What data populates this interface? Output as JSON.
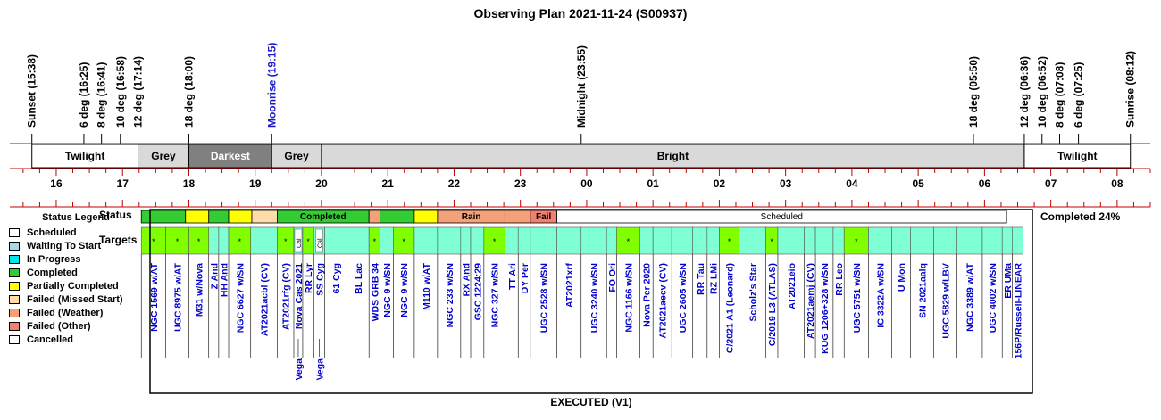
{
  "title": "Observing Plan 2021-11-24 (S00937)",
  "footer": "EXECUTED (V1)",
  "completed_label": "Completed 24%",
  "row_labels": {
    "status": "Status",
    "targets": "Targets"
  },
  "time_start_hour": 15.3,
  "time_end_hour": 32.5,
  "events": [
    {
      "label": "Sunset (15:38)",
      "t": 15.633,
      "color": "#000000"
    },
    {
      "label": "6 deg (16:25)",
      "t": 16.417,
      "color": "#000000"
    },
    {
      "label": "8 deg (16:41)",
      "t": 16.683,
      "color": "#000000"
    },
    {
      "label": "10 deg (16:58)",
      "t": 16.967,
      "color": "#000000"
    },
    {
      "label": "12 deg (17:14)",
      "t": 17.233,
      "color": "#000000"
    },
    {
      "label": "18 deg (18:00)",
      "t": 18.0,
      "color": "#000000"
    },
    {
      "label": "Moonrise (19:15)",
      "t": 19.25,
      "color": "#1a1ac8"
    },
    {
      "label": "Midnight (23:55)",
      "t": 23.917,
      "color": "#000000"
    },
    {
      "label": "18 deg (05:50)",
      "t": 29.833,
      "color": "#000000"
    },
    {
      "label": "12 deg (06:36)",
      "t": 30.6,
      "color": "#000000"
    },
    {
      "label": "10 deg (06:52)",
      "t": 30.867,
      "color": "#000000"
    },
    {
      "label": "8 deg (07:08)",
      "t": 31.133,
      "color": "#000000"
    },
    {
      "label": "6 deg (07:25)",
      "t": 31.417,
      "color": "#000000"
    },
    {
      "label": "Sunrise (08:12)",
      "t": 32.2,
      "color": "#000000"
    }
  ],
  "sky_bands": [
    {
      "label": "Twilight",
      "t0": 15.633,
      "t1": 17.233,
      "fill": "#ffffff",
      "text": "#000000"
    },
    {
      "label": "Grey",
      "t0": 17.233,
      "t1": 18.0,
      "fill": "#d9d9d9",
      "text": "#000000"
    },
    {
      "label": "Darkest",
      "t0": 18.0,
      "t1": 19.25,
      "fill": "#808080",
      "text": "#ffffff"
    },
    {
      "label": "Grey",
      "t0": 19.25,
      "t1": 20.0,
      "fill": "#d9d9d9",
      "text": "#000000"
    },
    {
      "label": "Bright",
      "t0": 20.0,
      "t1": 30.6,
      "fill": "#d9d9d9",
      "text": "#000000"
    },
    {
      "label": "Twilight",
      "t0": 30.6,
      "t1": 32.2,
      "fill": "#ffffff",
      "text": "#000000"
    }
  ],
  "hour_labels": [
    "16",
    "17",
    "18",
    "19",
    "20",
    "21",
    "22",
    "23",
    "00",
    "01",
    "02",
    "03",
    "04",
    "05",
    "06",
    "07",
    "08"
  ],
  "legend": {
    "title": "Status Legend",
    "items": [
      {
        "label": "Scheduled",
        "color": "#ffffff"
      },
      {
        "label": "Waiting To Start",
        "color": "#a8d8e8"
      },
      {
        "label": "In Progress",
        "color": "#00e5e5"
      },
      {
        "label": "Completed",
        "color": "#33cc33"
      },
      {
        "label": "Partially Completed",
        "color": "#ffff00"
      },
      {
        "label": "Failed (Missed Start)",
        "color": "#ffdcaa"
      },
      {
        "label": "Failed (Weather)",
        "color": "#f4a078"
      },
      {
        "label": "Failed (Other)",
        "color": "#f08070"
      },
      {
        "label": "Cancelled",
        "color": "#ffffff"
      }
    ]
  },
  "status_segments": [
    {
      "t0": 17.283,
      "t1": 17.95,
      "color": "#33cc33",
      "label": ""
    },
    {
      "t0": 17.95,
      "t1": 18.3,
      "color": "#ffff00",
      "label": ""
    },
    {
      "t0": 18.3,
      "t1": 18.6,
      "color": "#33cc33",
      "label": ""
    },
    {
      "t0": 18.6,
      "t1": 18.95,
      "color": "#ffff00",
      "label": ""
    },
    {
      "t0": 18.95,
      "t1": 19.333,
      "color": "#ffdcaa",
      "label": ""
    },
    {
      "t0": 19.333,
      "t1": 20.717,
      "color": "#33cc33",
      "label": "Completed"
    },
    {
      "t0": 20.717,
      "t1": 20.883,
      "color": "#f4a078",
      "label": ""
    },
    {
      "t0": 20.883,
      "t1": 21.4,
      "color": "#33cc33",
      "label": ""
    },
    {
      "t0": 21.4,
      "t1": 21.75,
      "color": "#ffff00",
      "label": ""
    },
    {
      "t0": 21.75,
      "t1": 22.767,
      "color": "#f4a078",
      "label": "Rain"
    },
    {
      "t0": 22.767,
      "t1": 23.15,
      "color": "#f4a078",
      "label": ""
    },
    {
      "t0": 23.15,
      "t1": 23.55,
      "color": "#f08070",
      "label": "Fail"
    },
    {
      "t0": 23.55,
      "t1": 30.333,
      "color": "#ffffff",
      "label": "Scheduled"
    }
  ],
  "targets": [
    {
      "t0": 17.283,
      "t1": 17.65,
      "color": "#7fff00",
      "name": "NGC 1569 w/AT",
      "star": true
    },
    {
      "t0": 17.65,
      "t1": 18.0,
      "color": "#7fff00",
      "name": "UGC 8975 w/AT",
      "star": true
    },
    {
      "t0": 18.0,
      "t1": 18.3,
      "color": "#7fff00",
      "name": "M31 w/Nova",
      "star": true
    },
    {
      "t0": 18.3,
      "t1": 18.45,
      "color": "#7fffd4",
      "name": "Z And",
      "star": false
    },
    {
      "t0": 18.45,
      "t1": 18.6,
      "color": "#7fffd4",
      "name": "HH And",
      "star": false
    },
    {
      "t0": 18.6,
      "t1": 18.933,
      "color": "#7fff00",
      "name": "NGC 6627 w/SN",
      "star": true
    },
    {
      "t0": 18.933,
      "t1": 19.333,
      "color": "#7fffd4",
      "name": "AT2021acbl (CV)",
      "star": false
    },
    {
      "t0": 19.333,
      "t1": 19.583,
      "color": "#7fff00",
      "name": "AT2021rfg (CV)",
      "star": true
    },
    {
      "t0": 19.583,
      "t1": 19.717,
      "color": "#7fffd4",
      "name": "Nova Cas 2021",
      "star": false,
      "cal": true,
      "extra": "Vega"
    },
    {
      "t0": 19.717,
      "t1": 19.883,
      "color": "#7fff00",
      "name": "RR Lyr",
      "star": true
    },
    {
      "t0": 19.883,
      "t1": 20.05,
      "color": "#7fffd4",
      "name": "SS Cyg",
      "star": false,
      "cal": true,
      "extra": "Vega"
    },
    {
      "t0": 20.05,
      "t1": 20.383,
      "color": "#7fffd4",
      "name": "61 Cyg",
      "star": false
    },
    {
      "t0": 20.383,
      "t1": 20.717,
      "color": "#7fffd4",
      "name": "BL Lac",
      "star": false
    },
    {
      "t0": 20.717,
      "t1": 20.883,
      "color": "#7fff00",
      "name": "WDS GRB 34",
      "star": true
    },
    {
      "t0": 20.883,
      "t1": 21.083,
      "color": "#7fffd4",
      "name": "NGC 9 w/SN",
      "star": false
    },
    {
      "t0": 21.083,
      "t1": 21.4,
      "color": "#7fff00",
      "name": "NGC 9 w/SN",
      "star": true
    },
    {
      "t0": 21.4,
      "t1": 21.75,
      "color": "#7fffd4",
      "name": "M110 w/AT",
      "star": false
    },
    {
      "t0": 21.75,
      "t1": 22.1,
      "color": "#7fffd4",
      "name": "NGC 233 w/SN",
      "star": false
    },
    {
      "t0": 22.1,
      "t1": 22.25,
      "color": "#7fffd4",
      "name": "RX And",
      "star": false
    },
    {
      "t0": 22.25,
      "t1": 22.45,
      "color": "#7fffd4",
      "name": "GSC 1224:29",
      "star": false
    },
    {
      "t0": 22.45,
      "t1": 22.767,
      "color": "#7fff00",
      "name": "NGC 327 w/SN",
      "star": true
    },
    {
      "t0": 22.767,
      "t1": 22.967,
      "color": "#7fffd4",
      "name": "TT Ari",
      "star": false
    },
    {
      "t0": 22.967,
      "t1": 23.15,
      "color": "#7fffd4",
      "name": "DY Per",
      "star": false
    },
    {
      "t0": 23.15,
      "t1": 23.55,
      "color": "#7fffd4",
      "name": "UGC 2528 w/SN",
      "star": false
    },
    {
      "t0": 23.55,
      "t1": 23.917,
      "color": "#7fffd4",
      "name": "AT2021xrf",
      "star": false
    },
    {
      "t0": 23.917,
      "t1": 24.3,
      "color": "#7fffd4",
      "name": "UGC 3240 w/SN",
      "star": false
    },
    {
      "t0": 24.3,
      "t1": 24.45,
      "color": "#7fffd4",
      "name": "FO Ori",
      "star": false
    },
    {
      "t0": 24.45,
      "t1": 24.8,
      "color": "#7fff00",
      "name": "NGC 1166 w/SN",
      "star": true
    },
    {
      "t0": 24.8,
      "t1": 25.0,
      "color": "#7fffd4",
      "name": "Nova Per 2020",
      "star": false
    },
    {
      "t0": 25.0,
      "t1": 25.283,
      "color": "#7fffd4",
      "name": "AT2021aecv (CV)",
      "star": false
    },
    {
      "t0": 25.283,
      "t1": 25.6,
      "color": "#7fffd4",
      "name": "UGC 2605 w/SN",
      "star": false
    },
    {
      "t0": 25.6,
      "t1": 25.817,
      "color": "#7fffd4",
      "name": "RR Tau",
      "star": false
    },
    {
      "t0": 25.817,
      "t1": 26.0,
      "color": "#7fffd4",
      "name": "RZ LMi",
      "star": false
    },
    {
      "t0": 26.0,
      "t1": 26.3,
      "color": "#7fff00",
      "name": "C/2021 A1 (Leonard)",
      "star": true
    },
    {
      "t0": 26.3,
      "t1": 26.7,
      "color": "#7fffd4",
      "name": "Scholz's Star",
      "star": false
    },
    {
      "t0": 26.7,
      "t1": 26.883,
      "color": "#7fff00",
      "name": "C/2019 L3 (ATLAS)",
      "star": true
    },
    {
      "t0": 26.883,
      "t1": 27.283,
      "color": "#7fffd4",
      "name": "AT2021eio",
      "star": false
    },
    {
      "t0": 27.283,
      "t1": 27.45,
      "color": "#7fffd4",
      "name": "AT2021aemj (CV)",
      "star": false
    },
    {
      "t0": 27.45,
      "t1": 27.717,
      "color": "#7fffd4",
      "name": "KUG 1206+328 w/SN",
      "star": false
    },
    {
      "t0": 27.717,
      "t1": 27.883,
      "color": "#7fffd4",
      "name": "RR Leo",
      "star": false
    },
    {
      "t0": 27.883,
      "t1": 28.25,
      "color": "#7fff00",
      "name": "UGC 5751 w/SN",
      "star": true
    },
    {
      "t0": 28.25,
      "t1": 28.6,
      "color": "#7fffd4",
      "name": "IC 3322A w/SN",
      "star": false
    },
    {
      "t0": 28.6,
      "t1": 28.883,
      "color": "#7fffd4",
      "name": "U Mon",
      "star": false
    },
    {
      "t0": 28.883,
      "t1": 29.233,
      "color": "#7fffd4",
      "name": "SN 2021aalq",
      "star": false
    },
    {
      "t0": 29.233,
      "t1": 29.583,
      "color": "#7fffd4",
      "name": "UGC 5829 w/LBV",
      "star": false
    },
    {
      "t0": 29.583,
      "t1": 29.967,
      "color": "#7fffd4",
      "name": "NGC 3389 w/AT",
      "star": false
    },
    {
      "t0": 29.967,
      "t1": 30.267,
      "color": "#7fffd4",
      "name": "UGC 4002 w/SN",
      "star": false
    },
    {
      "t0": 30.267,
      "t1": 30.417,
      "color": "#7fffd4",
      "name": "ER UMa",
      "star": false
    },
    {
      "t0": 30.417,
      "t1": 30.583,
      "color": "#7fffd4",
      "name": "156P/Russell-LINEAR",
      "star": false
    }
  ]
}
